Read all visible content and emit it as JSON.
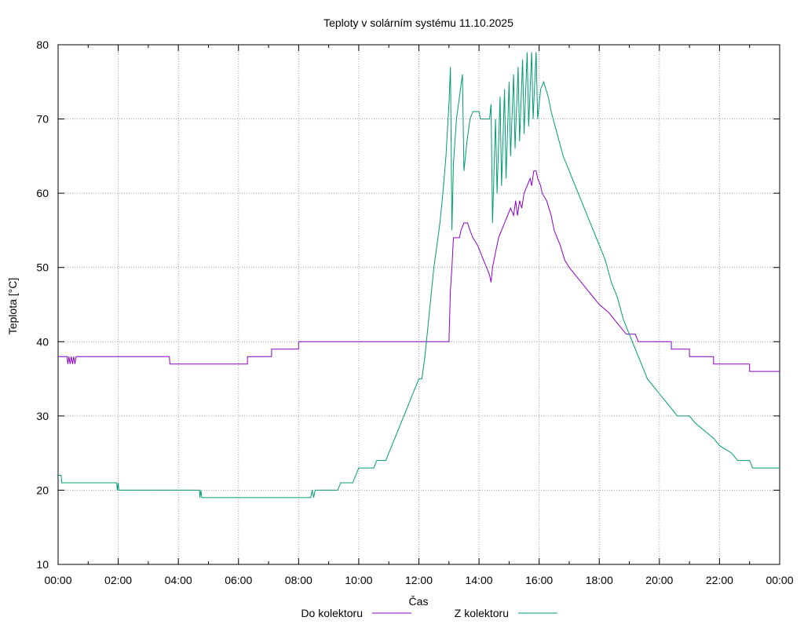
{
  "chart_data": {
    "type": "line",
    "title": "Teploty v solárním systému 11.10.2025",
    "xlabel": "Čas",
    "ylabel": "Teplota [°C]",
    "xlim": [
      0,
      24
    ],
    "ylim": [
      10,
      80
    ],
    "grid": true,
    "legend_position": "bottom-center",
    "x_tick_labels": [
      "00:00",
      "02:00",
      "04:00",
      "06:00",
      "08:00",
      "10:00",
      "12:00",
      "14:00",
      "16:00",
      "18:00",
      "20:00",
      "22:00",
      "00:00"
    ],
    "y_ticks": [
      10,
      20,
      30,
      40,
      50,
      60,
      70,
      80
    ],
    "series": [
      {
        "name": "Do kolektoru",
        "color": "#8b00c8",
        "points": [
          [
            0,
            38
          ],
          [
            0.3,
            38
          ],
          [
            0.32,
            37
          ],
          [
            0.36,
            38
          ],
          [
            0.4,
            37
          ],
          [
            0.44,
            38
          ],
          [
            0.48,
            37
          ],
          [
            0.52,
            38
          ],
          [
            0.56,
            37
          ],
          [
            0.6,
            38
          ],
          [
            3.7,
            38
          ],
          [
            3.72,
            37
          ],
          [
            6.3,
            37
          ],
          [
            6.3,
            38
          ],
          [
            7.1,
            38
          ],
          [
            7.1,
            39
          ],
          [
            8.0,
            39
          ],
          [
            8.0,
            40
          ],
          [
            13.0,
            40
          ],
          [
            13.05,
            47
          ],
          [
            13.1,
            50
          ],
          [
            13.15,
            54
          ],
          [
            13.35,
            54
          ],
          [
            13.4,
            55
          ],
          [
            13.5,
            56
          ],
          [
            13.62,
            56
          ],
          [
            13.7,
            55
          ],
          [
            13.8,
            54
          ],
          [
            13.95,
            53
          ],
          [
            14.05,
            52
          ],
          [
            14.15,
            51
          ],
          [
            14.25,
            50
          ],
          [
            14.35,
            49
          ],
          [
            14.4,
            48
          ],
          [
            14.45,
            50
          ],
          [
            14.55,
            52
          ],
          [
            14.65,
            54
          ],
          [
            14.75,
            55
          ],
          [
            14.85,
            56
          ],
          [
            14.95,
            57
          ],
          [
            15.05,
            58
          ],
          [
            15.15,
            57
          ],
          [
            15.22,
            59
          ],
          [
            15.28,
            57
          ],
          [
            15.35,
            59
          ],
          [
            15.42,
            58
          ],
          [
            15.5,
            60
          ],
          [
            15.6,
            61
          ],
          [
            15.7,
            62
          ],
          [
            15.75,
            61
          ],
          [
            15.82,
            63
          ],
          [
            15.9,
            63
          ],
          [
            15.95,
            62
          ],
          [
            16.05,
            61
          ],
          [
            16.1,
            60
          ],
          [
            16.25,
            59
          ],
          [
            16.4,
            57
          ],
          [
            16.5,
            55
          ],
          [
            16.6,
            54
          ],
          [
            16.7,
            53
          ],
          [
            16.85,
            51
          ],
          [
            17.0,
            50
          ],
          [
            17.2,
            49
          ],
          [
            17.4,
            48
          ],
          [
            17.6,
            47
          ],
          [
            17.8,
            46
          ],
          [
            18.0,
            45
          ],
          [
            18.3,
            44
          ],
          [
            18.5,
            43
          ],
          [
            18.7,
            42
          ],
          [
            18.9,
            41
          ],
          [
            19.2,
            41
          ],
          [
            19.3,
            40
          ],
          [
            20.4,
            40
          ],
          [
            20.4,
            39
          ],
          [
            21.0,
            39
          ],
          [
            21.0,
            38
          ],
          [
            21.8,
            38
          ],
          [
            21.8,
            37
          ],
          [
            23.0,
            37
          ],
          [
            23.0,
            36
          ],
          [
            24,
            36
          ]
        ]
      },
      {
        "name": "Z kolektoru",
        "color": "#009b73",
        "points": [
          [
            0,
            22
          ],
          [
            0.1,
            22
          ],
          [
            0.12,
            21
          ],
          [
            1.95,
            21
          ],
          [
            1.97,
            20
          ],
          [
            2.0,
            21
          ],
          [
            2.02,
            20
          ],
          [
            4.7,
            20
          ],
          [
            4.72,
            19
          ],
          [
            4.75,
            20
          ],
          [
            4.78,
            19
          ],
          [
            8.4,
            19
          ],
          [
            8.45,
            20
          ],
          [
            8.5,
            19
          ],
          [
            8.55,
            20
          ],
          [
            9.3,
            20
          ],
          [
            9.4,
            21
          ],
          [
            9.8,
            21
          ],
          [
            9.9,
            22
          ],
          [
            10.0,
            23
          ],
          [
            10.5,
            23
          ],
          [
            10.6,
            24
          ],
          [
            10.9,
            24
          ],
          [
            11.0,
            25
          ],
          [
            11.1,
            26
          ],
          [
            11.2,
            27
          ],
          [
            11.3,
            28
          ],
          [
            11.4,
            29
          ],
          [
            11.5,
            30
          ],
          [
            11.6,
            31
          ],
          [
            11.7,
            32
          ],
          [
            11.8,
            33
          ],
          [
            11.9,
            34
          ],
          [
            12.0,
            35
          ],
          [
            12.1,
            35
          ],
          [
            12.2,
            38
          ],
          [
            12.3,
            42
          ],
          [
            12.4,
            46
          ],
          [
            12.5,
            50
          ],
          [
            12.6,
            53
          ],
          [
            12.7,
            56
          ],
          [
            12.8,
            60
          ],
          [
            12.9,
            65
          ],
          [
            13.0,
            72
          ],
          [
            13.05,
            77
          ],
          [
            13.1,
            55
          ],
          [
            13.15,
            64
          ],
          [
            13.25,
            70
          ],
          [
            13.35,
            73
          ],
          [
            13.45,
            76
          ],
          [
            13.5,
            63
          ],
          [
            13.6,
            67
          ],
          [
            13.7,
            70
          ],
          [
            13.8,
            71
          ],
          [
            14.0,
            71
          ],
          [
            14.05,
            70
          ],
          [
            14.35,
            70
          ],
          [
            14.4,
            72
          ],
          [
            14.45,
            56
          ],
          [
            14.55,
            70
          ],
          [
            14.6,
            60
          ],
          [
            14.7,
            73
          ],
          [
            14.75,
            61
          ],
          [
            14.85,
            74
          ],
          [
            14.9,
            62
          ],
          [
            15.0,
            75
          ],
          [
            15.05,
            65
          ],
          [
            15.15,
            76
          ],
          [
            15.2,
            66
          ],
          [
            15.3,
            77
          ],
          [
            15.35,
            67
          ],
          [
            15.45,
            78
          ],
          [
            15.5,
            68
          ],
          [
            15.6,
            79
          ],
          [
            15.65,
            69
          ],
          [
            15.75,
            79
          ],
          [
            15.8,
            70
          ],
          [
            15.9,
            79
          ],
          [
            15.95,
            70
          ],
          [
            16.05,
            74
          ],
          [
            16.15,
            75
          ],
          [
            16.3,
            73
          ],
          [
            16.4,
            71
          ],
          [
            16.6,
            68
          ],
          [
            16.8,
            65
          ],
          [
            17.0,
            63
          ],
          [
            17.2,
            61
          ],
          [
            17.4,
            59
          ],
          [
            17.6,
            57
          ],
          [
            17.8,
            55
          ],
          [
            18.0,
            53
          ],
          [
            18.2,
            51
          ],
          [
            18.4,
            48
          ],
          [
            18.6,
            46
          ],
          [
            18.8,
            43
          ],
          [
            19.0,
            41
          ],
          [
            19.2,
            39
          ],
          [
            19.4,
            37
          ],
          [
            19.6,
            35
          ],
          [
            19.8,
            34
          ],
          [
            20.0,
            33
          ],
          [
            20.2,
            32
          ],
          [
            20.4,
            31
          ],
          [
            20.6,
            30
          ],
          [
            21.0,
            30
          ],
          [
            21.2,
            29
          ],
          [
            21.5,
            28
          ],
          [
            21.8,
            27
          ],
          [
            22.0,
            26
          ],
          [
            22.4,
            25
          ],
          [
            22.6,
            24
          ],
          [
            23.0,
            24
          ],
          [
            23.1,
            23
          ],
          [
            24,
            23
          ]
        ]
      }
    ]
  }
}
